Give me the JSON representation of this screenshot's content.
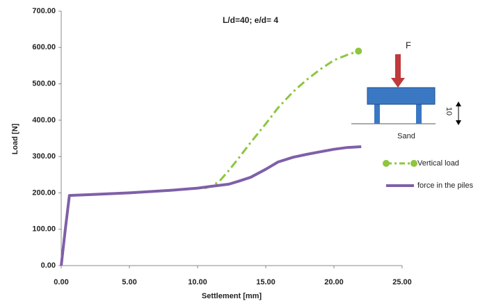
{
  "chart_data": {
    "type": "line",
    "title": "L/d=40; e/d= 4",
    "x_label": "Settlement [mm]",
    "y_label": "Load [N]",
    "xlim": [
      0,
      25
    ],
    "ylim": [
      0,
      700
    ],
    "xticks": [
      {
        "value": 0,
        "label": "0.00"
      },
      {
        "value": 5,
        "label": "5.00"
      },
      {
        "value": 10,
        "label": "10.00"
      },
      {
        "value": 15,
        "label": "15.00"
      },
      {
        "value": 20,
        "label": "20.00"
      },
      {
        "value": 25,
        "label": "25.00"
      }
    ],
    "yticks": [
      {
        "value": 0,
        "label": "0.00"
      },
      {
        "value": 100,
        "label": "100.00"
      },
      {
        "value": 200,
        "label": "200.00"
      },
      {
        "value": 300,
        "label": "300.00"
      },
      {
        "value": 400,
        "label": "400.00"
      },
      {
        "value": 500,
        "label": "500.00"
      },
      {
        "value": 600,
        "label": "600.00"
      },
      {
        "value": 700,
        "label": "700.00"
      }
    ],
    "grid": false,
    "legend": "right",
    "series": [
      {
        "name": "Vertical load",
        "color": "#8dc63f",
        "style": "dashdot",
        "end_marker": true,
        "x": [
          10.5,
          11,
          11.6,
          12.3,
          13,
          13.9,
          15,
          15.9,
          17,
          18,
          19,
          20,
          21,
          21.8
        ],
        "values": [
          213,
          218,
          232,
          262,
          295,
          339,
          390,
          434,
          478,
          511,
          540,
          565,
          580,
          590
        ]
      },
      {
        "name": "force in the piles",
        "color": "#7f5fa8",
        "style": "solid",
        "end_marker": false,
        "x": [
          0,
          0.3,
          0.6,
          2,
          5,
          8,
          10,
          11,
          12.3,
          13,
          13.9,
          15,
          15.9,
          17,
          18,
          19,
          20,
          21,
          22
        ],
        "values": [
          0,
          100,
          193,
          195,
          200,
          207,
          213,
          218,
          224,
          232,
          243,
          265,
          285,
          298,
          306,
          313,
          320,
          325,
          327
        ]
      }
    ],
    "annotations": {
      "force": "F",
      "soil": "Sand",
      "height": "10"
    }
  }
}
